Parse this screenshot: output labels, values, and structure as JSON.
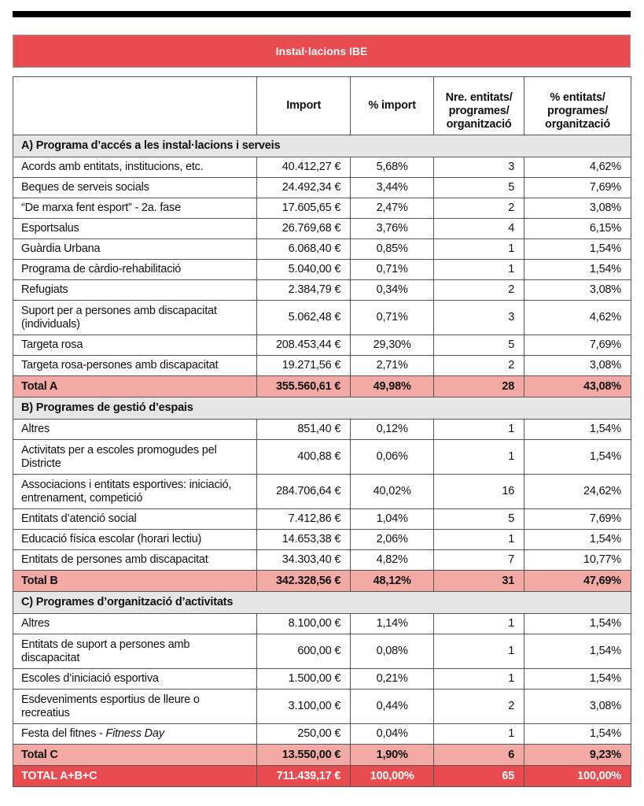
{
  "title": "Instal·lacions IBE",
  "headers": [
    "",
    "Import",
    "% import",
    "Nre. entitats/ programes/ organització",
    "% entitats/ programes/ organització"
  ],
  "sections": [
    {
      "title": "A) Programa d’accés a les instal·lacions i serveis",
      "rows": [
        [
          "Acords amb entitats, institucions, etc.",
          "40.412,27 €",
          "5,68%",
          "3",
          "4,62%"
        ],
        [
          "Beques de serveis socials",
          "24.492,34 €",
          "3,44%",
          "5",
          "7,69%"
        ],
        [
          "“De marxa fent esport” - 2a. fase",
          "17.605,65 €",
          "2,47%",
          "2",
          "3,08%"
        ],
        [
          "Esportsalus",
          "26.769,68 €",
          "3,76%",
          "4",
          "6,15%"
        ],
        [
          "Guàrdia Urbana",
          "6.068,40 €",
          "0,85%",
          "1",
          "1,54%"
        ],
        [
          "Programa de càrdio-rehabilitació",
          "5.040,00 €",
          "0,71%",
          "1",
          "1,54%"
        ],
        [
          "Refugiats",
          "2.384,79 €",
          "0,34%",
          "2",
          "3,08%"
        ],
        [
          "Suport per a persones amb discapacitat (individuals)",
          "5.062,48 €",
          "0,71%",
          "3",
          "4,62%"
        ],
        [
          "Targeta rosa",
          "208.453,44 €",
          "29,30%",
          "5",
          "7,69%"
        ],
        [
          "Targeta rosa-persones amb discapacitat",
          "19.271,56 €",
          "2,71%",
          "2",
          "3,08%"
        ]
      ],
      "total": [
        "Total A",
        "355.560,61 €",
        "49,98%",
        "28",
        "43,08%"
      ]
    },
    {
      "title": "B) Programes de gestió d’espais",
      "rows": [
        [
          "Altres",
          "851,40 €",
          "0,12%",
          "1",
          "1,54%"
        ],
        [
          "Activitats per a escoles promogudes pel Districte",
          "400,88 €",
          "0,06%",
          "1",
          "1,54%"
        ],
        [
          "Associacions i entitats esportives: iniciació, entrenament, competició",
          "284.706,64 €",
          "40,02%",
          "16",
          "24,62%"
        ],
        [
          "Entitats d’atenció social",
          "7.412,86 €",
          "1,04%",
          "5",
          "7,69%"
        ],
        [
          "Educació física escolar (horari lectiu)",
          "14.653,38 €",
          "2,06%",
          "1",
          "1,54%"
        ],
        [
          "Entitats de persones amb discapacitat",
          "34.303,40 €",
          "4,82%",
          "7",
          "10,77%"
        ]
      ],
      "total": [
        "Total B",
        "342.328,56 €",
        "48,12%",
        "31",
        "47,69%"
      ]
    },
    {
      "title": "C) Programes d’organització d’activitats",
      "rows": [
        [
          "Altres",
          "8.100,00 €",
          "1,14%",
          "1",
          "1,54%"
        ],
        [
          "Entitats de suport a persones amb discapacitat",
          "600,00 €",
          "0,08%",
          "1",
          "1,54%"
        ],
        [
          "Escoles d’iniciació esportiva",
          "1.500,00 €",
          "0,21%",
          "1",
          "1,54%"
        ],
        [
          "Esdeveniments esportius de lleure o recreatius",
          "3.100,00 €",
          "0,44%",
          "2",
          "3,08%"
        ],
        [
          "Festa del fitnes - Fitness Day",
          "250,00 €",
          "0,04%",
          "1",
          "1,54%"
        ]
      ],
      "total": [
        "Total C",
        "13.550,00 €",
        "1,90%",
        "6",
        "9,23%"
      ]
    }
  ],
  "grand_total": [
    "TOTAL A+B+C",
    "711.439,17 €",
    "100,00%",
    "65",
    "100,00%"
  ],
  "colors": {
    "title_bar": "#e84b50",
    "total_row": "#f4aaa4",
    "section_row": "#e6e6e6"
  }
}
